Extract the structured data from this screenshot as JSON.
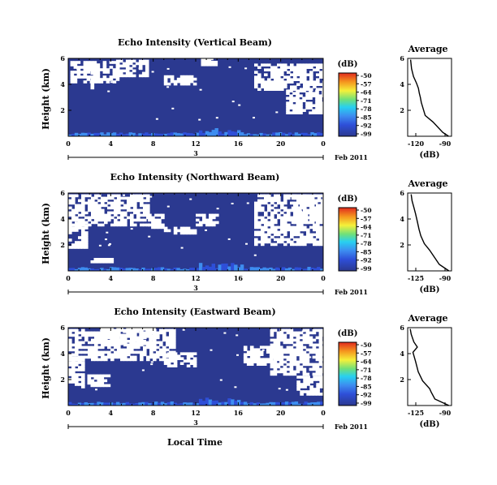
{
  "panels": [
    {
      "title": "Echo Intensity (Vertical Beam)",
      "avg_title": "Average",
      "avg_xticks": [
        "-120",
        "-90"
      ]
    },
    {
      "title": "Echo Intensity (Northward Beam)",
      "avg_title": "Average",
      "avg_xticks": [
        "-125",
        "-90"
      ]
    },
    {
      "title": "Echo Intensity (Eastward Beam)",
      "avg_title": "Average",
      "avg_xticks": [
        "-125",
        "-90"
      ]
    }
  ],
  "ylabel": "Height (km)",
  "avg_ylabel": "(dB)",
  "colorbar_label": "(dB)",
  "colorbar_ticks": [
    "-50",
    "-57",
    "-64",
    "-71",
    "-78",
    "-85",
    "-92",
    "-99"
  ],
  "xticks": [
    "0",
    "4",
    "8",
    "12",
    "16",
    "20",
    "0"
  ],
  "yticks": [
    "2",
    "4",
    "6"
  ],
  "avg_yticks": [
    "2",
    "4",
    "6"
  ],
  "date_day": "3",
  "date_label": "Feb 2011",
  "xlabel": "Local Time",
  "colors": {
    "background": "#2b3990",
    "no_data": "#ffffff"
  },
  "chart_data": [
    {
      "type": "heatmap",
      "title": "Echo Intensity (Vertical Beam)",
      "xlabel": "",
      "ylabel": "Height (km)",
      "xlim": [
        0,
        24
      ],
      "ylim": [
        0,
        6
      ],
      "zlim": [
        -99,
        -50
      ]
    },
    {
      "type": "line",
      "title": "Average",
      "xlabel": "(dB)",
      "ylabel": "",
      "xlim": [
        -130,
        -85
      ],
      "ylim": [
        0,
        6
      ],
      "x": [
        -88,
        -94,
        -104,
        -112,
        -114,
        -116,
        -117,
        -118,
        -119,
        -121,
        -124,
        -126,
        -127
      ],
      "y": [
        0.0,
        0.3,
        1.1,
        1.6,
        2.1,
        2.6,
        3.0,
        3.3,
        3.7,
        4.1,
        4.6,
        5.2,
        5.9
      ]
    },
    {
      "type": "heatmap",
      "title": "Echo Intensity (Northward Beam)",
      "xlabel": "",
      "ylabel": "Height (km)",
      "xlim": [
        0,
        24
      ],
      "ylim": [
        0,
        6
      ],
      "zlim": [
        -99,
        -50
      ]
    },
    {
      "type": "line",
      "title": "Average",
      "xlabel": "(dB)",
      "ylabel": "",
      "xlim": [
        -135,
        -85
      ],
      "ylim": [
        0,
        6
      ],
      "x": [
        -88,
        -99,
        -104,
        -110,
        -116,
        -120,
        -122,
        -124,
        -126,
        -128,
        -130,
        -131
      ],
      "y": [
        0.0,
        0.5,
        1.0,
        1.6,
        2.1,
        2.7,
        3.2,
        3.8,
        4.4,
        4.9,
        5.4,
        5.9
      ]
    },
    {
      "type": "heatmap",
      "title": "Echo Intensity (Eastward Beam)",
      "xlabel": "Local Time",
      "ylabel": "Height (km)",
      "xlim": [
        0,
        24
      ],
      "ylim": [
        0,
        6
      ],
      "zlim": [
        -99,
        -50
      ]
    },
    {
      "type": "line",
      "title": "Average",
      "xlabel": "(dB)",
      "ylabel": "",
      "xlim": [
        -135,
        -85
      ],
      "ylim": [
        0,
        6
      ],
      "x": [
        -88,
        -104,
        -108,
        -110,
        -118,
        -123,
        -126,
        -129,
        -124,
        -128,
        -131,
        -132
      ],
      "y": [
        0.0,
        0.5,
        1.0,
        1.3,
        1.9,
        2.6,
        3.4,
        4.1,
        4.5,
        4.9,
        5.5,
        5.9
      ]
    }
  ]
}
